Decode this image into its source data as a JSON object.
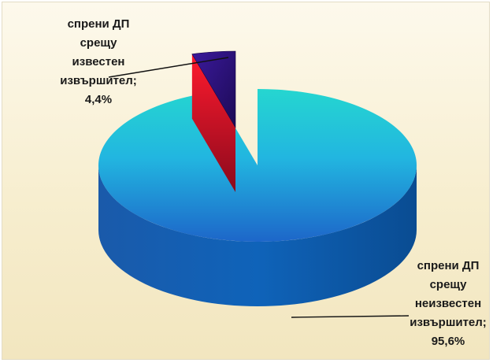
{
  "chart_data": {
    "type": "pie",
    "categories": [
      "спрени ДП срещу известен извършител",
      "спрени ДП срещу неизвестен извършител"
    ],
    "values": [
      4.4,
      95.6
    ],
    "value_labels": [
      "4,4%",
      "95,6%"
    ],
    "label_lines": [
      [
        "спрени ДП",
        "срещу",
        "известен",
        "извършител;",
        "4,4%"
      ],
      [
        "спрени ДП",
        "срещу",
        "неизвестен",
        "извършител;",
        "95,6%"
      ]
    ],
    "style": "3d-exploded",
    "legend": "none",
    "title": "",
    "colors": {
      "small_slice_top": "#2a0f7a",
      "small_slice_side": "#c0102a",
      "large_slice_top_light": "#25d6d0",
      "large_slice_top_dark": "#1d66c9",
      "large_slice_side": "#0f4f9a"
    }
  }
}
